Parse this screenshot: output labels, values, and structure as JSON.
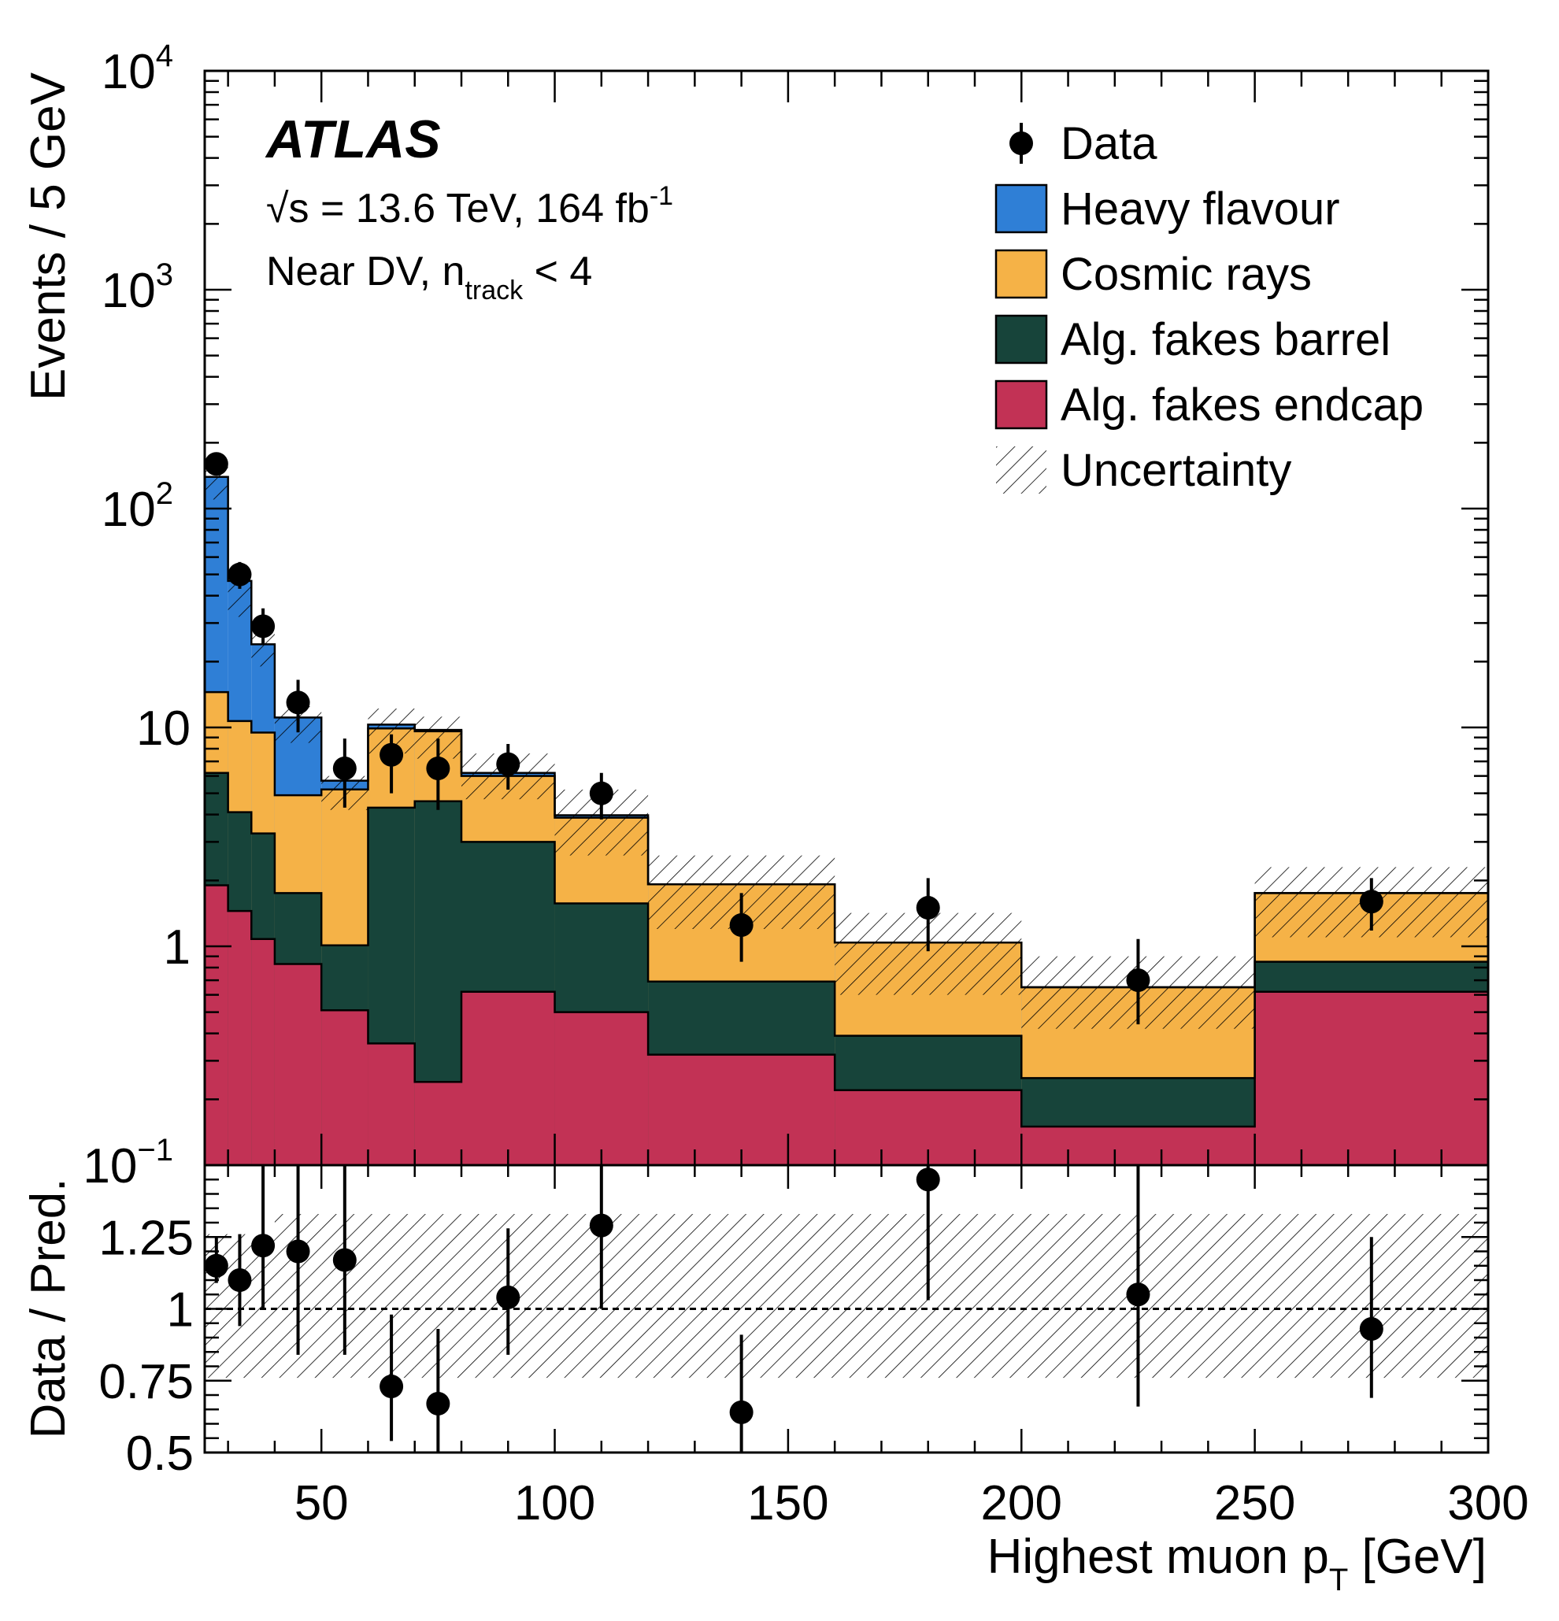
{
  "chart_data": {
    "type": "bar",
    "subtype": "stacked_histogram_with_ratio_panel",
    "experiment_label": "ATLAS",
    "energy_label": "√s = 13.6 TeV, 164 fb",
    "energy_label_sup": "-1",
    "region_label": "Near DV, n",
    "region_label_sub": "track",
    "region_label_suffix": " < 4",
    "xlabel": "Highest muon p",
    "xlabel_sub": "T",
    "xlabel_unit": " [GeV]",
    "ylabel_main": "Events / 5 GeV",
    "ylabel_ratio": "Data / Pred.",
    "xlim": [
      25,
      300
    ],
    "ylim_main": [
      0.1,
      10000
    ],
    "ylim_ratio": [
      0.5,
      1.5
    ],
    "main_y_scale": "log",
    "x_ticks": [
      "50",
      "100",
      "150",
      "200",
      "250",
      "300"
    ],
    "y_ticks_main": [
      {
        "base": "10",
        "exp": "4"
      },
      {
        "base": "10",
        "exp": "3"
      },
      {
        "base": "10",
        "exp": "2"
      },
      {
        "base": "10",
        "exp": ""
      },
      {
        "base": "1",
        "exp": ""
      },
      {
        "base": "10",
        "exp": "−1"
      }
    ],
    "y_ticks_ratio": [
      "1.25",
      "1",
      "0.75",
      "0.5"
    ],
    "bin_edges": [
      25,
      30,
      35,
      40,
      50,
      60,
      70,
      80,
      100,
      120,
      160,
      200,
      250,
      300
    ],
    "legend": {
      "position": "top-right",
      "entries": [
        {
          "label": "Data",
          "kind": "marker"
        },
        {
          "label": "Heavy flavour",
          "kind": "fill",
          "color": "#2f7fd6"
        },
        {
          "label": "Cosmic rays",
          "kind": "fill",
          "color": "#f5b247"
        },
        {
          "label": "Alg. fakes barrel",
          "kind": "fill",
          "color": "#17443a"
        },
        {
          "label": "Alg. fakes endcap",
          "kind": "fill",
          "color": "#c23255"
        },
        {
          "label": "Uncertainty",
          "kind": "hatch"
        }
      ]
    },
    "series": [
      {
        "name": "Alg. fakes endcap",
        "color": "#c23255",
        "values": [
          1.9,
          1.45,
          1.08,
          0.83,
          0.51,
          0.36,
          0.24,
          0.62,
          0.5,
          0.32,
          0.22,
          0.15,
          0.62
        ]
      },
      {
        "name": "Alg. fakes barrel",
        "color": "#17443a",
        "values": [
          4.3,
          2.65,
          2.2,
          0.92,
          0.5,
          3.94,
          4.36,
          2.38,
          1.07,
          0.37,
          0.17,
          0.1,
          0.23
        ]
      },
      {
        "name": "Cosmic rays",
        "color": "#f5b247",
        "values": [
          8.3,
          6.6,
          6.2,
          3.15,
          4.2,
          5.6,
          5.0,
          3.0,
          2.3,
          1.23,
          0.65,
          0.4,
          0.9
        ]
      },
      {
        "name": "Heavy flavour",
        "color": "#2f7fd6",
        "values": [
          125,
          36,
          14.5,
          6.2,
          0.5,
          0.4,
          0.14,
          0.2,
          0.1,
          0,
          0,
          0,
          0
        ]
      }
    ],
    "uncertainty_band_main": {
      "lower": [
        110,
        32,
        19,
        8.5,
        4.2,
        7.6,
        7.2,
        4.7,
        2.6,
        1.2,
        0.6,
        0.42,
        1.1
      ],
      "upper": [
        160,
        52,
        30,
        12.5,
        6.0,
        12.2,
        11.2,
        7.6,
        5.2,
        2.6,
        1.42,
        0.9,
        2.3
      ]
    },
    "uncertainty_band_ratio": {
      "lower": [
        0.76,
        0.76,
        0.76,
        0.76,
        0.76,
        0.76,
        0.76,
        0.76,
        0.76,
        0.76,
        0.76,
        0.76,
        0.76
      ],
      "upper": [
        1.26,
        1.26,
        1.26,
        1.33,
        1.33,
        1.33,
        1.33,
        1.33,
        1.33,
        1.33,
        1.33,
        1.33,
        1.33
      ]
    },
    "data_points": [
      {
        "x": 27.5,
        "y": 160,
        "err_lo": 13,
        "err_hi": 13,
        "ratio": 1.15,
        "ratio_lo": 0.06,
        "ratio_hi": 0.1
      },
      {
        "x": 32.5,
        "y": 50,
        "err_lo": 7,
        "err_hi": 7,
        "ratio": 1.1,
        "ratio_lo": 0.16,
        "ratio_hi": 0.16
      },
      {
        "x": 37.5,
        "y": 29,
        "err_lo": 5,
        "err_hi": 6,
        "ratio": 1.22,
        "ratio_lo": 0.22,
        "ratio_hi": 0.28
      },
      {
        "x": 45,
        "y": 13,
        "err_lo": 3.5,
        "err_hi": 3.5,
        "ratio": 1.2,
        "ratio_lo": 0.36,
        "ratio_hi": 0.3
      },
      {
        "x": 55,
        "y": 6.5,
        "err_lo": 2.2,
        "err_hi": 2.4,
        "ratio": 1.17,
        "ratio_lo": 0.33,
        "ratio_hi": 0.33
      },
      {
        "x": 65,
        "y": 7.5,
        "err_lo": 2.5,
        "err_hi": 1.8,
        "ratio": 0.73,
        "ratio_lo": 0.19,
        "ratio_hi": 0.25
      },
      {
        "x": 75,
        "y": 6.5,
        "err_lo": 2.3,
        "err_hi": 2.4,
        "ratio": 0.67,
        "ratio_lo": 0.17,
        "ratio_hi": 0.26
      },
      {
        "x": 90,
        "y": 6.8,
        "err_lo": 1.6,
        "err_hi": 1.6,
        "ratio": 1.04,
        "ratio_lo": 0.2,
        "ratio_hi": 0.24
      },
      {
        "x": 110,
        "y": 5.0,
        "err_lo": 1.2,
        "err_hi": 1.2,
        "ratio": 1.29,
        "ratio_lo": 0.29,
        "ratio_hi": 0.3
      },
      {
        "x": 140,
        "y": 1.25,
        "err_lo": 0.4,
        "err_hi": 0.5,
        "ratio": 0.64,
        "ratio_lo": 0.14,
        "ratio_hi": 0.27
      },
      {
        "x": 180,
        "y": 1.5,
        "err_lo": 0.55,
        "err_hi": 0.55,
        "ratio": 1.45,
        "ratio_lo": 0.42,
        "ratio_hi": 0.05
      },
      {
        "x": 225,
        "y": 0.7,
        "err_lo": 0.26,
        "err_hi": 0.38,
        "ratio": 1.05,
        "ratio_lo": 0.39,
        "ratio_hi": 0.45
      },
      {
        "x": 275,
        "y": 1.6,
        "err_lo": 0.42,
        "err_hi": 0.45,
        "ratio": 0.93,
        "ratio_lo": 0.24,
        "ratio_hi": 0.32
      }
    ],
    "reference_line_ratio": 1
  }
}
